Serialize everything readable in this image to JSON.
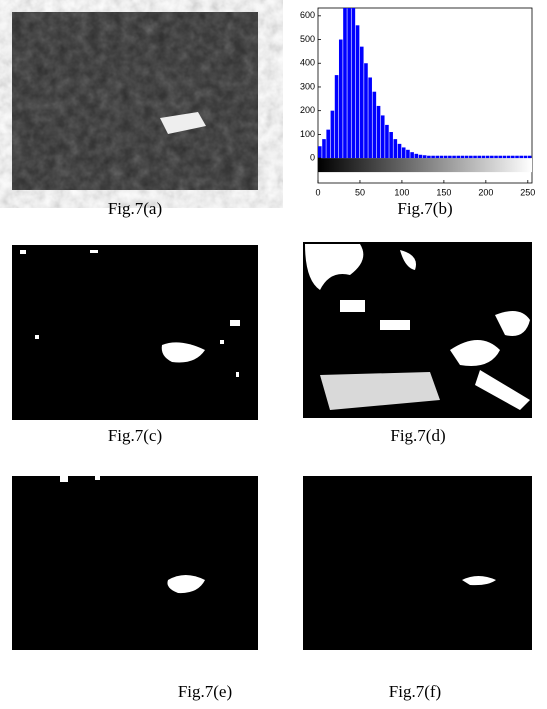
{
  "chart_data": {
    "type": "histogram",
    "bins": [
      0,
      5,
      10,
      15,
      20,
      25,
      30,
      35,
      40,
      45,
      50,
      55,
      60,
      65,
      70,
      75,
      80,
      85,
      90,
      95,
      100,
      105,
      110,
      115,
      120,
      125,
      130,
      135,
      140,
      145,
      150,
      155,
      160,
      165,
      170,
      175,
      180,
      185,
      190,
      195,
      200,
      205,
      210,
      215,
      220,
      225,
      230,
      235,
      240,
      245,
      250,
      255
    ],
    "values": [
      50,
      80,
      120,
      200,
      350,
      500,
      640,
      640,
      640,
      560,
      470,
      400,
      340,
      280,
      220,
      180,
      140,
      110,
      80,
      60,
      45,
      35,
      25,
      18,
      14,
      12,
      10,
      10,
      10,
      10,
      10,
      10,
      10,
      10,
      10,
      10,
      10,
      10,
      10,
      10,
      10,
      10,
      10,
      10,
      10,
      10,
      10,
      10,
      10,
      10,
      10
    ],
    "color": "#0000ff",
    "xlim": [
      0,
      255
    ],
    "ylim": [
      -105,
      633
    ],
    "xticks": [
      0,
      50,
      100,
      150,
      200,
      250
    ],
    "yticks": [
      0,
      100,
      200,
      300,
      400,
      500,
      600
    ]
  },
  "captions": [
    "Fig.7(a)",
    "Fig.7(b)",
    "Fig.7(c)",
    "Fig.7(d)",
    "Fig.7(e)",
    "Fig.7(f)"
  ]
}
